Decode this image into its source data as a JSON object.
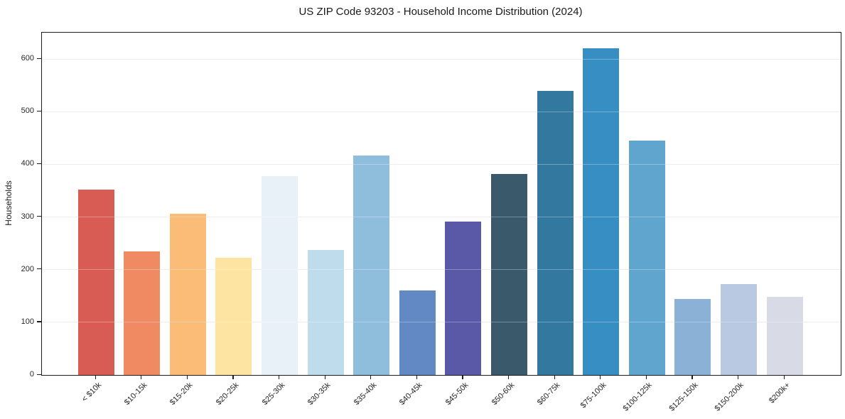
{
  "figure": {
    "title": "US ZIP Code 93203 - Household Income Distribution (2024)"
  },
  "chart_data": {
    "type": "bar",
    "title": "US ZIP Code 93203 - Household Income Distribution (2024)",
    "xlabel": "",
    "ylabel": "Households",
    "ylim": [
      0,
      650
    ],
    "yticks": [
      0,
      100,
      200,
      300,
      400,
      500,
      600
    ],
    "grid": "horizontal-light",
    "legend": "none",
    "categories": [
      "< $10k",
      "$10-15k",
      "$15-20k",
      "$20-25k",
      "$25-30k",
      "$30-35k",
      "$35-40k",
      "$40-45k",
      "$45-50k",
      "$50-60k",
      "$60-75k",
      "$75-100k",
      "$100-125k",
      "$125-150k",
      "$150-200k",
      "$200k+"
    ],
    "values": [
      352,
      235,
      306,
      222,
      378,
      238,
      417,
      160,
      291,
      381,
      540,
      620,
      445,
      144,
      172,
      149
    ],
    "bar_colors": [
      "#d85c54",
      "#f08a63",
      "#fabc77",
      "#fde4a3",
      "#e8f1f7",
      "#bedcec",
      "#8fbedd",
      "#6289c4",
      "#5a59a8",
      "#3a5a6c",
      "#33789e",
      "#368ec3",
      "#60a5ce",
      "#8cb1d7",
      "#b9c9e2",
      "#d8dae6"
    ],
    "axis_color": "#1c1c1c",
    "gridline_color": "#e6e6e6"
  }
}
